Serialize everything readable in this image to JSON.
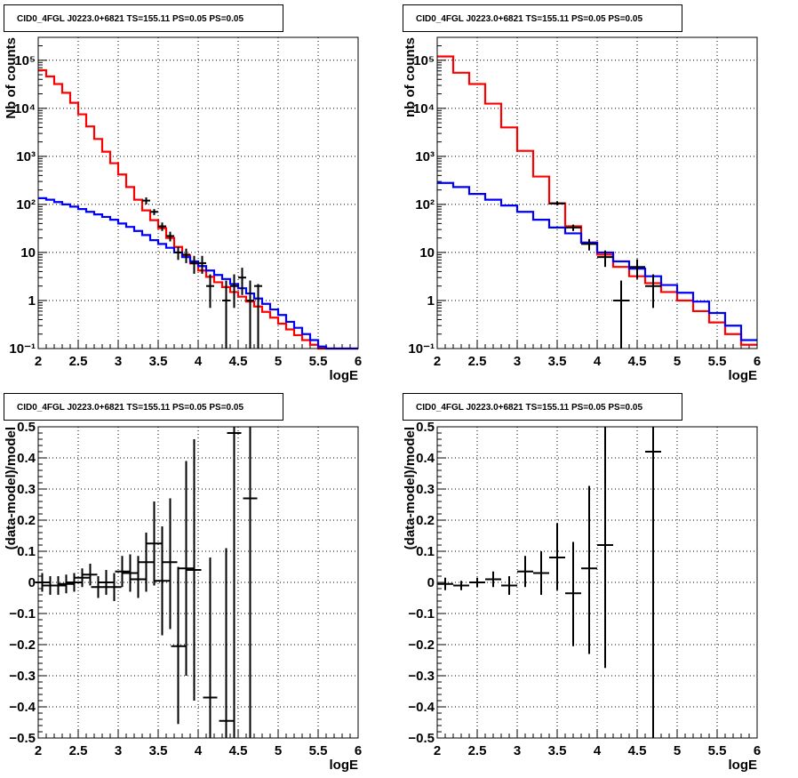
{
  "chart_data": [
    {
      "type": "line",
      "title": "CID0_4FGL J0223.0+6821 TS=155.11 PS=0.05 PS=0.05",
      "xlabel": "logE",
      "ylabel": "Nb of counts",
      "xlim": [
        2,
        6
      ],
      "ylim": [
        0.1,
        300000
      ],
      "yscale": "log",
      "grid": true,
      "x_ticks": [
        "2",
        "2.5",
        "3",
        "3.5",
        "4",
        "4.5",
        "5",
        "5.5",
        "6"
      ],
      "y_ticks": [
        "10⁻¹",
        "1",
        "10",
        "10²",
        "10³",
        "10⁴",
        "10⁵"
      ],
      "bin_edges": [
        2.0,
        2.1,
        2.2,
        2.3,
        2.4,
        2.5,
        2.6,
        2.7,
        2.8,
        2.9,
        3.0,
        3.1,
        3.2,
        3.3,
        3.4,
        3.5,
        3.6,
        3.7,
        3.8,
        3.9,
        4.0,
        4.1,
        4.2,
        4.3,
        4.4,
        4.5,
        4.6,
        4.7,
        4.8,
        4.9,
        5.0,
        5.1,
        5.2,
        5.3,
        5.4,
        5.5,
        5.6,
        5.7,
        5.8,
        5.9,
        6.0
      ],
      "series": [
        {
          "color": "#ff0000",
          "style": "step",
          "values": [
            62000,
            46000,
            32000,
            21000,
            13000,
            7500,
            4200,
            2300,
            1250,
            720,
            420,
            230,
            125,
            75,
            47,
            32,
            20,
            13,
            8.7,
            5.9,
            4.2,
            3.1,
            2.4,
            1.9,
            1.5,
            1.2,
            0.95,
            0.75,
            0.58,
            0.44,
            0.33,
            0.25,
            0.19,
            0.15,
            0.12,
            0.1,
            0.1,
            0.1,
            0.1,
            0.1
          ]
        },
        {
          "color": "#0000ff",
          "style": "step",
          "values": [
            135,
            125,
            112,
            100,
            90,
            80,
            70,
            62,
            55,
            48,
            40,
            34,
            28,
            23,
            18,
            15,
            12.5,
            10,
            8,
            6.5,
            5.2,
            4.2,
            3.4,
            2.8,
            2.2,
            1.8,
            1.4,
            1.1,
            0.85,
            0.65,
            0.5,
            0.36,
            0.27,
            0.2,
            0.15,
            0.11,
            0.1,
            0.1,
            0.1,
            0.1
          ]
        },
        {
          "color": "#000000",
          "style": "points",
          "points": [
            {
              "x": 3.35,
              "y": 120,
              "lo": 100,
              "hi": 140
            },
            {
              "x": 3.45,
              "y": 70,
              "lo": 60,
              "hi": 80
            },
            {
              "x": 3.55,
              "y": 35,
              "lo": 28,
              "hi": 42
            },
            {
              "x": 3.65,
              "y": 22,
              "lo": 17,
              "hi": 27
            },
            {
              "x": 3.75,
              "y": 10,
              "lo": 7,
              "hi": 13
            },
            {
              "x": 3.85,
              "y": 9,
              "lo": 6,
              "hi": 12
            },
            {
              "x": 3.95,
              "y": 6,
              "lo": 3.6,
              "hi": 8.5
            },
            {
              "x": 4.05,
              "y": 6,
              "lo": 3.6,
              "hi": 8.5
            },
            {
              "x": 4.15,
              "y": 2,
              "lo": 0.7,
              "hi": 3.5
            },
            {
              "x": 4.35,
              "y": 1,
              "lo": 0.1,
              "hi": 2.6
            },
            {
              "x": 4.45,
              "y": 2,
              "lo": 0.7,
              "hi": 3.5
            },
            {
              "x": 4.55,
              "y": 3,
              "lo": 1.3,
              "hi": 4.8
            },
            {
              "x": 4.65,
              "y": 1,
              "lo": 0.1,
              "hi": 2.6
            },
            {
              "x": 4.75,
              "y": 2,
              "lo": 0.1,
              "hi": 2.2
            }
          ]
        }
      ]
    },
    {
      "type": "line",
      "title": "CID0_4FGL J0223.0+6821 TS=155.11 PS=0.05 PS=0.05",
      "xlabel": "logE",
      "ylabel": "nb of counts",
      "xlim": [
        2,
        6
      ],
      "ylim": [
        0.1,
        300000
      ],
      "yscale": "log",
      "grid": true,
      "x_ticks": [
        "2",
        "2.5",
        "3",
        "3.5",
        "4",
        "4.5",
        "5",
        "5.5",
        "6"
      ],
      "y_ticks": [
        "10⁻¹",
        "1",
        "10",
        "10²",
        "10³",
        "10⁴",
        "10⁵"
      ],
      "bin_edges": [
        2.0,
        2.2,
        2.4,
        2.6,
        2.8,
        3.0,
        3.2,
        3.4,
        3.6,
        3.8,
        4.0,
        4.2,
        4.4,
        4.6,
        4.8,
        5.0,
        5.2,
        5.4,
        5.6,
        5.8,
        6.0
      ],
      "series": [
        {
          "color": "#ff0000",
          "style": "step",
          "values": [
            120000,
            55000,
            32000,
            12500,
            4000,
            1300,
            380,
            105,
            35,
            16,
            9,
            5,
            3.2,
            2.3,
            1.5,
            1.0,
            0.6,
            0.35,
            0.2,
            0.12
          ]
        },
        {
          "color": "#0000ff",
          "style": "step",
          "values": [
            280,
            230,
            165,
            125,
            95,
            70,
            48,
            33,
            25,
            16,
            10,
            6.5,
            4.6,
            3.2,
            2.1,
            1.45,
            0.95,
            0.55,
            0.3,
            0.15
          ]
        },
        {
          "color": "#000000",
          "style": "points",
          "points": [
            {
              "x": 3.5,
              "y": 105,
              "lo": 95,
              "hi": 115
            },
            {
              "x": 3.7,
              "y": 33,
              "lo": 28,
              "hi": 38
            },
            {
              "x": 3.9,
              "y": 15,
              "lo": 11,
              "hi": 19
            },
            {
              "x": 4.1,
              "y": 8,
              "lo": 5,
              "hi": 11
            },
            {
              "x": 4.3,
              "y": 1,
              "lo": 0.1,
              "hi": 2.6
            },
            {
              "x": 4.5,
              "y": 5,
              "lo": 2.8,
              "hi": 7.2
            },
            {
              "x": 4.7,
              "y": 2,
              "lo": 0.7,
              "hi": 3.5
            }
          ]
        }
      ]
    },
    {
      "type": "scatter",
      "title": "CID0_4FGL J0223.0+6821 TS=155.11 PS=0.05 PS=0.05",
      "xlabel": "logE",
      "ylabel": "(data-model)/model",
      "xlim": [
        2,
        6
      ],
      "ylim": [
        -0.5,
        0.5
      ],
      "grid": true,
      "x_ticks": [
        "2",
        "2.5",
        "3",
        "3.5",
        "4",
        "4.5",
        "5",
        "5.5",
        "6"
      ],
      "y_ticks": [
        "−0.5",
        "−0.4",
        "−0.3",
        "−0.2",
        "−0.1",
        "0",
        "0.1",
        "0.2",
        "0.3",
        "0.4",
        "0.5"
      ],
      "points": [
        {
          "x": 2.05,
          "y": 0.0,
          "lo": -0.03,
          "hi": 0.03
        },
        {
          "x": 2.15,
          "y": -0.01,
          "lo": -0.04,
          "hi": 0.02
        },
        {
          "x": 2.25,
          "y": -0.01,
          "lo": -0.04,
          "hi": 0.02
        },
        {
          "x": 2.35,
          "y": -0.005,
          "lo": -0.035,
          "hi": 0.025
        },
        {
          "x": 2.45,
          "y": 0.0,
          "lo": -0.03,
          "hi": 0.03
        },
        {
          "x": 2.55,
          "y": 0.015,
          "lo": -0.015,
          "hi": 0.045
        },
        {
          "x": 2.65,
          "y": 0.025,
          "lo": -0.01,
          "hi": 0.06
        },
        {
          "x": 2.75,
          "y": -0.015,
          "lo": -0.05,
          "hi": 0.02
        },
        {
          "x": 2.85,
          "y": 0.0,
          "lo": -0.04,
          "hi": 0.04
        },
        {
          "x": 2.95,
          "y": -0.015,
          "lo": -0.06,
          "hi": 0.03
        },
        {
          "x": 3.05,
          "y": 0.035,
          "lo": -0.015,
          "hi": 0.085
        },
        {
          "x": 3.15,
          "y": 0.03,
          "lo": -0.03,
          "hi": 0.09
        },
        {
          "x": 3.25,
          "y": 0.01,
          "lo": -0.05,
          "hi": 0.085
        },
        {
          "x": 3.35,
          "y": 0.065,
          "lo": -0.03,
          "hi": 0.16
        },
        {
          "x": 3.45,
          "y": 0.125,
          "lo": -0.01,
          "hi": 0.26
        },
        {
          "x": 3.55,
          "y": 0.005,
          "lo": -0.17,
          "hi": 0.18
        },
        {
          "x": 3.65,
          "y": 0.065,
          "lo": -0.15,
          "hi": 0.27
        },
        {
          "x": 3.75,
          "y": -0.205,
          "lo": -0.455,
          "hi": 0.05
        },
        {
          "x": 3.85,
          "y": 0.045,
          "lo": -0.3,
          "hi": 0.39
        },
        {
          "x": 3.95,
          "y": 0.04,
          "lo": -0.38,
          "hi": 0.46
        },
        {
          "x": 4.15,
          "y": -0.37,
          "lo": -0.5,
          "hi": 0.08
        },
        {
          "x": 4.35,
          "y": -0.445,
          "lo": -0.5,
          "hi": 0.11
        },
        {
          "x": 4.45,
          "y": 0.48,
          "lo": -0.5,
          "hi": 0.5
        },
        {
          "x": 4.65,
          "y": 0.27,
          "lo": -0.5,
          "hi": 0.5
        }
      ]
    },
    {
      "type": "scatter",
      "title": "CID0_4FGL J0223.0+6821 TS=155.11 PS=0.05 PS=0.05",
      "xlabel": "logE",
      "ylabel": "(data-model)/model",
      "xlim": [
        2,
        6
      ],
      "ylim": [
        -0.5,
        0.5
      ],
      "grid": true,
      "x_ticks": [
        "2",
        "2.5",
        "3",
        "3.5",
        "4",
        "4.5",
        "5",
        "5.5",
        "6"
      ],
      "y_ticks": [
        "−0.5",
        "−0.4",
        "−0.3",
        "−0.2",
        "−0.1",
        "0",
        "0.1",
        "0.2",
        "0.3",
        "0.4",
        "0.5"
      ],
      "points": [
        {
          "x": 2.1,
          "y": -0.005,
          "lo": -0.025,
          "hi": 0.015
        },
        {
          "x": 2.3,
          "y": -0.01,
          "lo": -0.025,
          "hi": 0.005
        },
        {
          "x": 2.5,
          "y": 0.0,
          "lo": -0.015,
          "hi": 0.015
        },
        {
          "x": 2.7,
          "y": 0.01,
          "lo": -0.015,
          "hi": 0.035
        },
        {
          "x": 2.9,
          "y": -0.01,
          "lo": -0.04,
          "hi": 0.02
        },
        {
          "x": 3.1,
          "y": 0.035,
          "lo": -0.015,
          "hi": 0.085
        },
        {
          "x": 3.3,
          "y": 0.03,
          "lo": -0.04,
          "hi": 0.1
        },
        {
          "x": 3.5,
          "y": 0.08,
          "lo": -0.025,
          "hi": 0.19
        },
        {
          "x": 3.7,
          "y": -0.035,
          "lo": -0.205,
          "hi": 0.13
        },
        {
          "x": 3.9,
          "y": 0.045,
          "lo": -0.23,
          "hi": 0.31
        },
        {
          "x": 4.1,
          "y": 0.12,
          "lo": -0.275,
          "hi": 0.5
        },
        {
          "x": 4.7,
          "y": 0.42,
          "lo": -0.5,
          "hi": 0.5
        }
      ]
    }
  ]
}
